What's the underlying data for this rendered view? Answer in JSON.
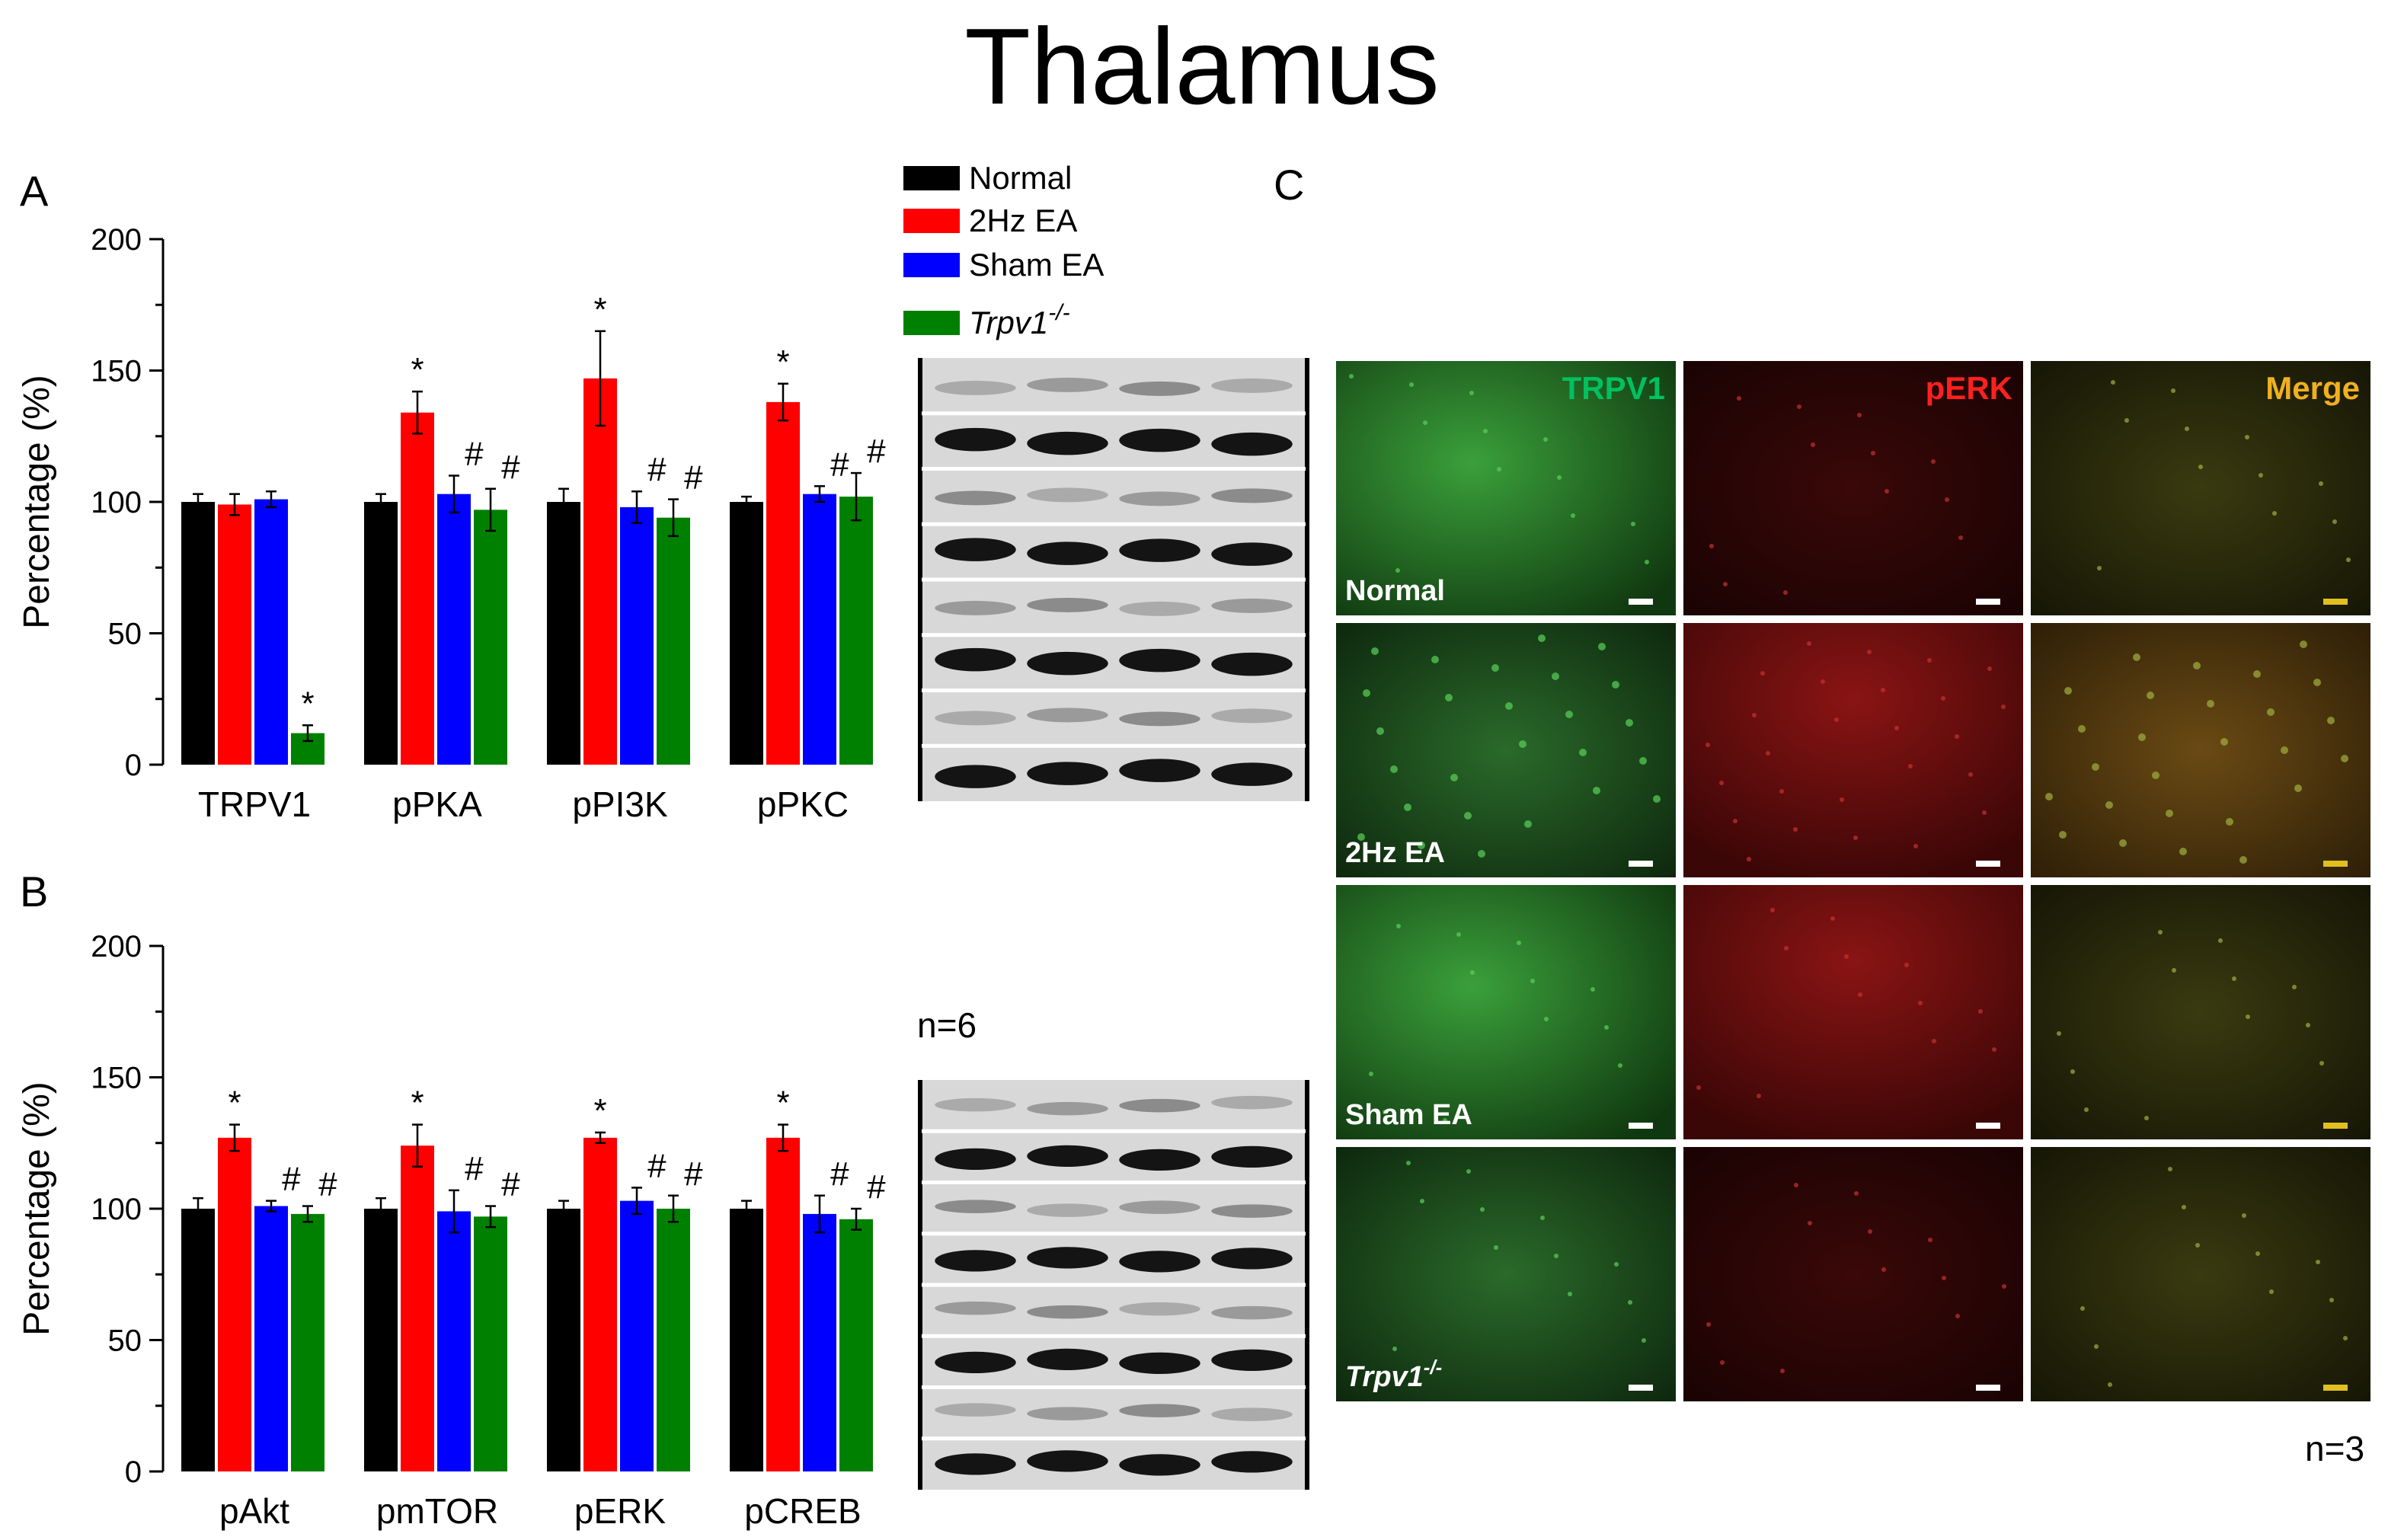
{
  "title": "Thalamus",
  "legend": [
    {
      "label": "Normal",
      "color": "#000000"
    },
    {
      "label": "2Hz EA",
      "color": "#ff0000"
    },
    {
      "label": "Sham EA",
      "color": "#0000ff"
    },
    {
      "label": "Trpv1",
      "sup": "-/-",
      "color": "#008000"
    }
  ],
  "chart_data": [
    {
      "panel": "A",
      "type": "bar",
      "ylabel": "Percentage (%)",
      "ylim": [
        0,
        200
      ],
      "yticks": [
        "0",
        "50",
        "100",
        "150",
        "200"
      ],
      "categories": [
        "TRPV1",
        "pPKA",
        "pPI3K",
        "pPKC"
      ],
      "series": [
        {
          "values": [
            100,
            100,
            100,
            100
          ],
          "errors": [
            3,
            3,
            5,
            2
          ],
          "color": "#000000"
        },
        {
          "values": [
            99,
            134,
            147,
            138
          ],
          "errors": [
            4,
            8,
            18,
            7
          ],
          "color": "#ff0000"
        },
        {
          "values": [
            101,
            103,
            98,
            103
          ],
          "errors": [
            3,
            7,
            6,
            3
          ],
          "color": "#0000ff"
        },
        {
          "values": [
            12,
            97,
            94,
            102
          ],
          "errors": [
            3,
            8,
            7,
            9
          ],
          "color": "#008000"
        }
      ],
      "marks": [
        {
          "category": 0,
          "series": 3,
          "symbol": "*"
        },
        {
          "category": 1,
          "series": 1,
          "symbol": "*"
        },
        {
          "category": 1,
          "series": 2,
          "symbol": "#"
        },
        {
          "category": 1,
          "series": 3,
          "symbol": "#"
        },
        {
          "category": 2,
          "series": 1,
          "symbol": "*"
        },
        {
          "category": 2,
          "series": 2,
          "symbol": "#"
        },
        {
          "category": 2,
          "series": 3,
          "symbol": "#"
        },
        {
          "category": 3,
          "series": 1,
          "symbol": "*"
        },
        {
          "category": 3,
          "series": 2,
          "symbol": "#"
        },
        {
          "category": 3,
          "series": 3,
          "symbol": "#"
        }
      ]
    },
    {
      "panel": "B",
      "type": "bar",
      "ylabel": "Percentage (%)",
      "ylim": [
        0,
        200
      ],
      "yticks": [
        "0",
        "50",
        "100",
        "150",
        "200"
      ],
      "categories": [
        "pAkt",
        "pmTOR",
        "pERK",
        "pCREB"
      ],
      "series": [
        {
          "values": [
            100,
            100,
            100,
            100
          ],
          "errors": [
            4,
            4,
            3,
            3
          ],
          "color": "#000000"
        },
        {
          "values": [
            127,
            124,
            127,
            127
          ],
          "errors": [
            5,
            8,
            2,
            5
          ],
          "color": "#ff0000"
        },
        {
          "values": [
            101,
            99,
            103,
            98
          ],
          "errors": [
            2,
            8,
            5,
            7
          ],
          "color": "#0000ff"
        },
        {
          "values": [
            98,
            97,
            100,
            96
          ],
          "errors": [
            3,
            4,
            5,
            4
          ],
          "color": "#008000"
        }
      ],
      "marks": [
        {
          "category": 0,
          "series": 1,
          "symbol": "*"
        },
        {
          "category": 0,
          "series": 2,
          "symbol": "#"
        },
        {
          "category": 0,
          "series": 3,
          "symbol": "#"
        },
        {
          "category": 1,
          "series": 1,
          "symbol": "*"
        },
        {
          "category": 1,
          "series": 2,
          "symbol": "#"
        },
        {
          "category": 1,
          "series": 3,
          "symbol": "#"
        },
        {
          "category": 2,
          "series": 1,
          "symbol": "*"
        },
        {
          "category": 2,
          "series": 2,
          "symbol": "#"
        },
        {
          "category": 2,
          "series": 3,
          "symbol": "#"
        },
        {
          "category": 3,
          "series": 1,
          "symbol": "*"
        },
        {
          "category": 3,
          "series": 2,
          "symbol": "#"
        },
        {
          "category": 3,
          "series": 3,
          "symbol": "#"
        }
      ]
    }
  ],
  "blots": {
    "n_label": "n=6",
    "lanes": 4,
    "rows": 8
  },
  "micrographs": {
    "panel": "C",
    "columns": [
      "TRPV1",
      "pERK",
      "Merge"
    ],
    "column_colors": [
      "#00c060",
      "#ff2020",
      "#f0b020"
    ],
    "rows": [
      {
        "label": "Normal"
      },
      {
        "label": "2Hz EA"
      },
      {
        "label": "Sham EA"
      },
      {
        "label": "Trpv1",
        "sup": "-/-"
      }
    ],
    "n_label": "n=3"
  }
}
